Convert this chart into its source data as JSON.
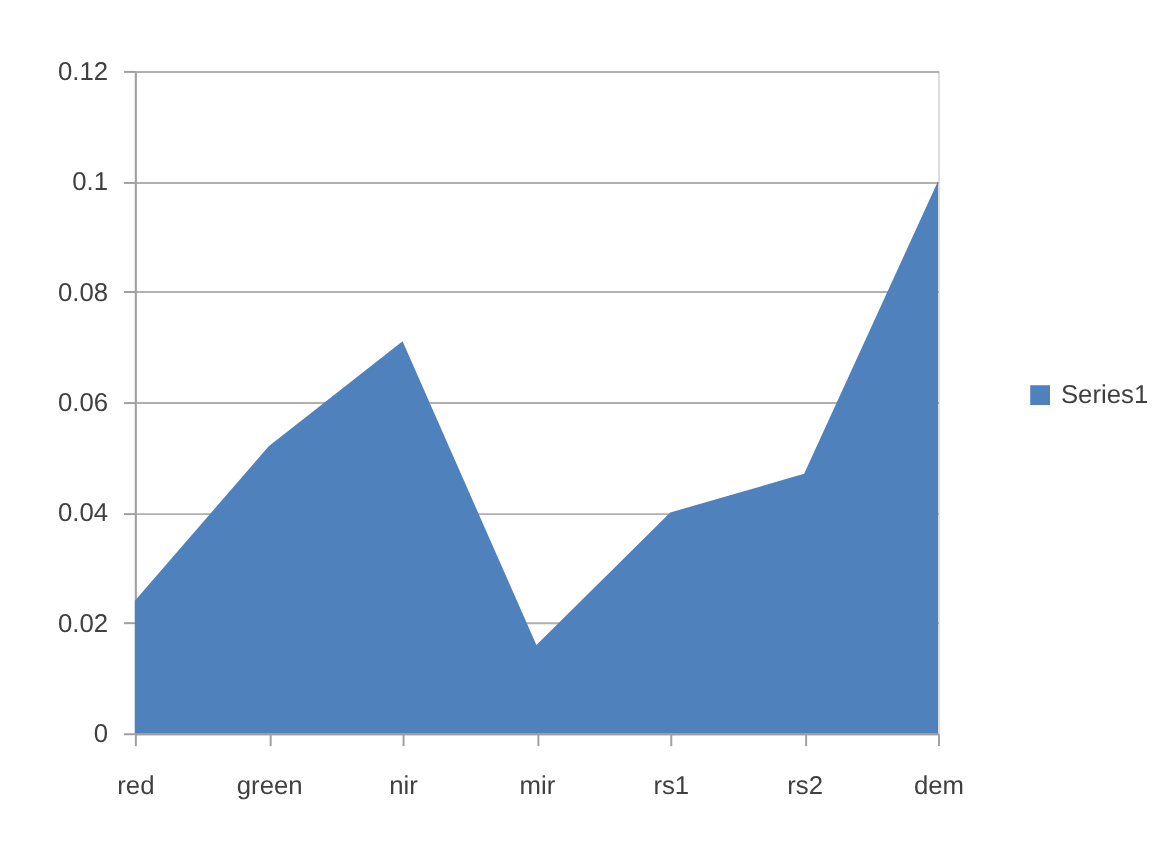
{
  "chart_data": {
    "type": "area",
    "categories": [
      "red",
      "green",
      "nir",
      "mir",
      "rs1",
      "rs2",
      "dem"
    ],
    "series": [
      {
        "name": "Series1",
        "color": "#4f81bd",
        "values": [
          0.024,
          0.052,
          0.071,
          0.016,
          0.04,
          0.047,
          0.1
        ]
      }
    ],
    "ylim": [
      0,
      0.12
    ],
    "yticks": [
      0,
      0.02,
      0.04,
      0.06,
      0.08,
      0.1,
      0.12
    ],
    "grid": "y",
    "legend": "right"
  }
}
